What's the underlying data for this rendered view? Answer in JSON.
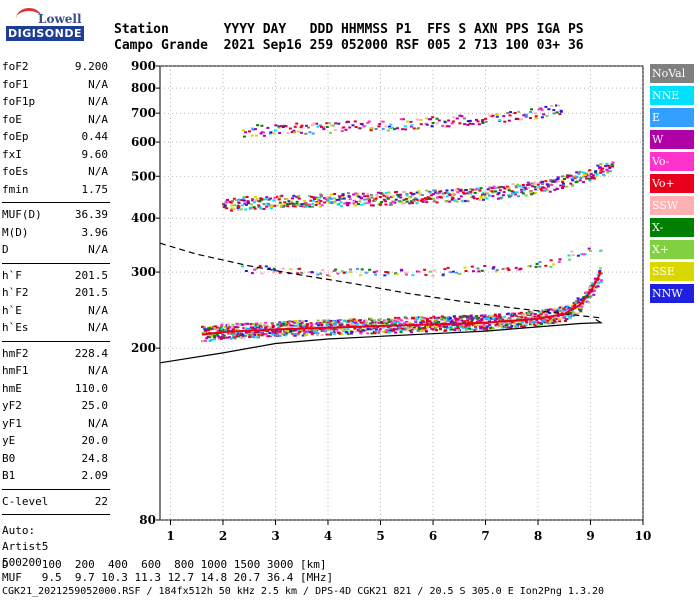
{
  "logo": {
    "line1": "Lowell",
    "line2": "DIGISONDE"
  },
  "header": {
    "row1": "Station       YYYY DAY   DDD HHMMSS P1  FFS S AXN PPS IGA PS",
    "row2": "Campo Grande  2021 Sep16 259 052000 RSF 005 2 713 100 03+ 36"
  },
  "params": {
    "group1": [
      {
        "label": "foF2",
        "value": "9.200"
      },
      {
        "label": "foF1",
        "value": "N/A"
      },
      {
        "label": "foF1p",
        "value": "N/A"
      },
      {
        "label": "foE",
        "value": "N/A"
      },
      {
        "label": "foEp",
        "value": "0.44"
      },
      {
        "label": "fxI",
        "value": "9.60"
      },
      {
        "label": "foEs",
        "value": "N/A"
      },
      {
        "label": "fmin",
        "value": "1.75"
      }
    ],
    "group2": [
      {
        "label": "MUF(D)",
        "value": "36.39"
      },
      {
        "label": "M(D)",
        "value": "3.96"
      },
      {
        "label": "D",
        "value": "N/A"
      }
    ],
    "group3": [
      {
        "label": "h`F",
        "value": "201.5"
      },
      {
        "label": "h`F2",
        "value": "201.5"
      },
      {
        "label": "h`E",
        "value": "N/A"
      },
      {
        "label": "h`Es",
        "value": "N/A"
      }
    ],
    "group4": [
      {
        "label": "hmF2",
        "value": "228.4"
      },
      {
        "label": "hmF1",
        "value": "N/A"
      },
      {
        "label": "hmE",
        "value": "110.0"
      },
      {
        "label": "yF2",
        "value": "25.0"
      },
      {
        "label": "yF1",
        "value": "N/A"
      },
      {
        "label": "yE",
        "value": "20.0"
      },
      {
        "label": "B0",
        "value": "24.8"
      },
      {
        "label": "B1",
        "value": "2.09"
      }
    ],
    "group5": [
      {
        "label": "C-level",
        "value": "22"
      }
    ],
    "auto": [
      "Auto:",
      "Artist5",
      "500200"
    ]
  },
  "legend": [
    {
      "label": "NoVal",
      "color": "#808080"
    },
    {
      "label": "NNE",
      "color": "#00e0ff"
    },
    {
      "label": "E",
      "color": "#33a0ff"
    },
    {
      "label": "W",
      "color": "#b000a8"
    },
    {
      "label": "Vo-",
      "color": "#ff33cc"
    },
    {
      "label": "Vo+",
      "color": "#e8001a"
    },
    {
      "label": "SSW",
      "color": "#ffb0b0"
    },
    {
      "label": "X-",
      "color": "#008000"
    },
    {
      "label": "X+",
      "color": "#80d040"
    },
    {
      "label": "SSE",
      "color": "#d8d800"
    },
    {
      "label": "NNW",
      "color": "#2020e0"
    }
  ],
  "footer": {
    "row1": "D     100  200  400  600  800 1000 1500 3000 [km]",
    "row2": "MUF   9.5  9.7 10.3 11.3 12.7 14.8 20.7 36.4 [MHz]",
    "row3": "CGK21_2021259052000.RSF / 184fx512h 50 kHz 2.5 km / DPS-4D CGK21 821 / 20.5 S 305.0 E Ion2Png 1.3.20"
  },
  "chart_data": {
    "type": "scatter",
    "xlim": [
      0.8,
      10
    ],
    "ylim": [
      80,
      900
    ],
    "y_scale": "log",
    "xticks": [
      "1",
      "2",
      "3",
      "4",
      "5",
      "6",
      "7",
      "8",
      "9",
      "10"
    ],
    "yticks": [
      "80",
      "200",
      "300",
      "400",
      "500",
      "600",
      "700",
      "800",
      "900"
    ],
    "grid": true,
    "series": [
      {
        "name": "F2 trace 1",
        "x": [
          1.6,
          2.0,
          3.0,
          4.0,
          5.0,
          6.0,
          7.0,
          8.0,
          8.5,
          8.8,
          9.0,
          9.2
        ],
        "y": [
          215,
          218,
          221,
          223,
          225,
          227,
          229,
          234,
          240,
          252,
          270,
          300
        ]
      },
      {
        "name": "F2 trace 2",
        "x": [
          2.0,
          3.0,
          4.0,
          5.0,
          6.0,
          7.0,
          8.0,
          8.5,
          9.0,
          9.4
        ],
        "y": [
          430,
          435,
          440,
          443,
          448,
          455,
          470,
          485,
          505,
          525
        ]
      },
      {
        "name": "F2 trace 3",
        "x": [
          2.4,
          3.0,
          4.0,
          5.0,
          6.0,
          7.0,
          8.0,
          8.5
        ],
        "y": [
          635,
          640,
          648,
          655,
          665,
          680,
          700,
          712
        ]
      },
      {
        "name": "upper trace",
        "x": [
          2.4,
          4.0,
          6.0,
          8.0,
          9.2
        ],
        "y": [
          305,
          300,
          300,
          310,
          345
        ]
      },
      {
        "name": "profile",
        "x": [
          0.8,
          2.0,
          3.0,
          4.0,
          5.0,
          6.0,
          7.0,
          8.0,
          8.8,
          9.2,
          9.1
        ],
        "y": [
          185,
          195,
          205,
          210,
          213,
          216,
          219,
          224,
          228,
          229,
          233
        ]
      },
      {
        "name": "profile dashed",
        "x": [
          0.8,
          1.5,
          2.5,
          3.5,
          4.5,
          5.5,
          6.5,
          7.5,
          8.5,
          9.2
        ],
        "y": [
          350,
          330,
          310,
          295,
          282,
          268,
          257,
          248,
          240,
          235
        ]
      }
    ]
  }
}
